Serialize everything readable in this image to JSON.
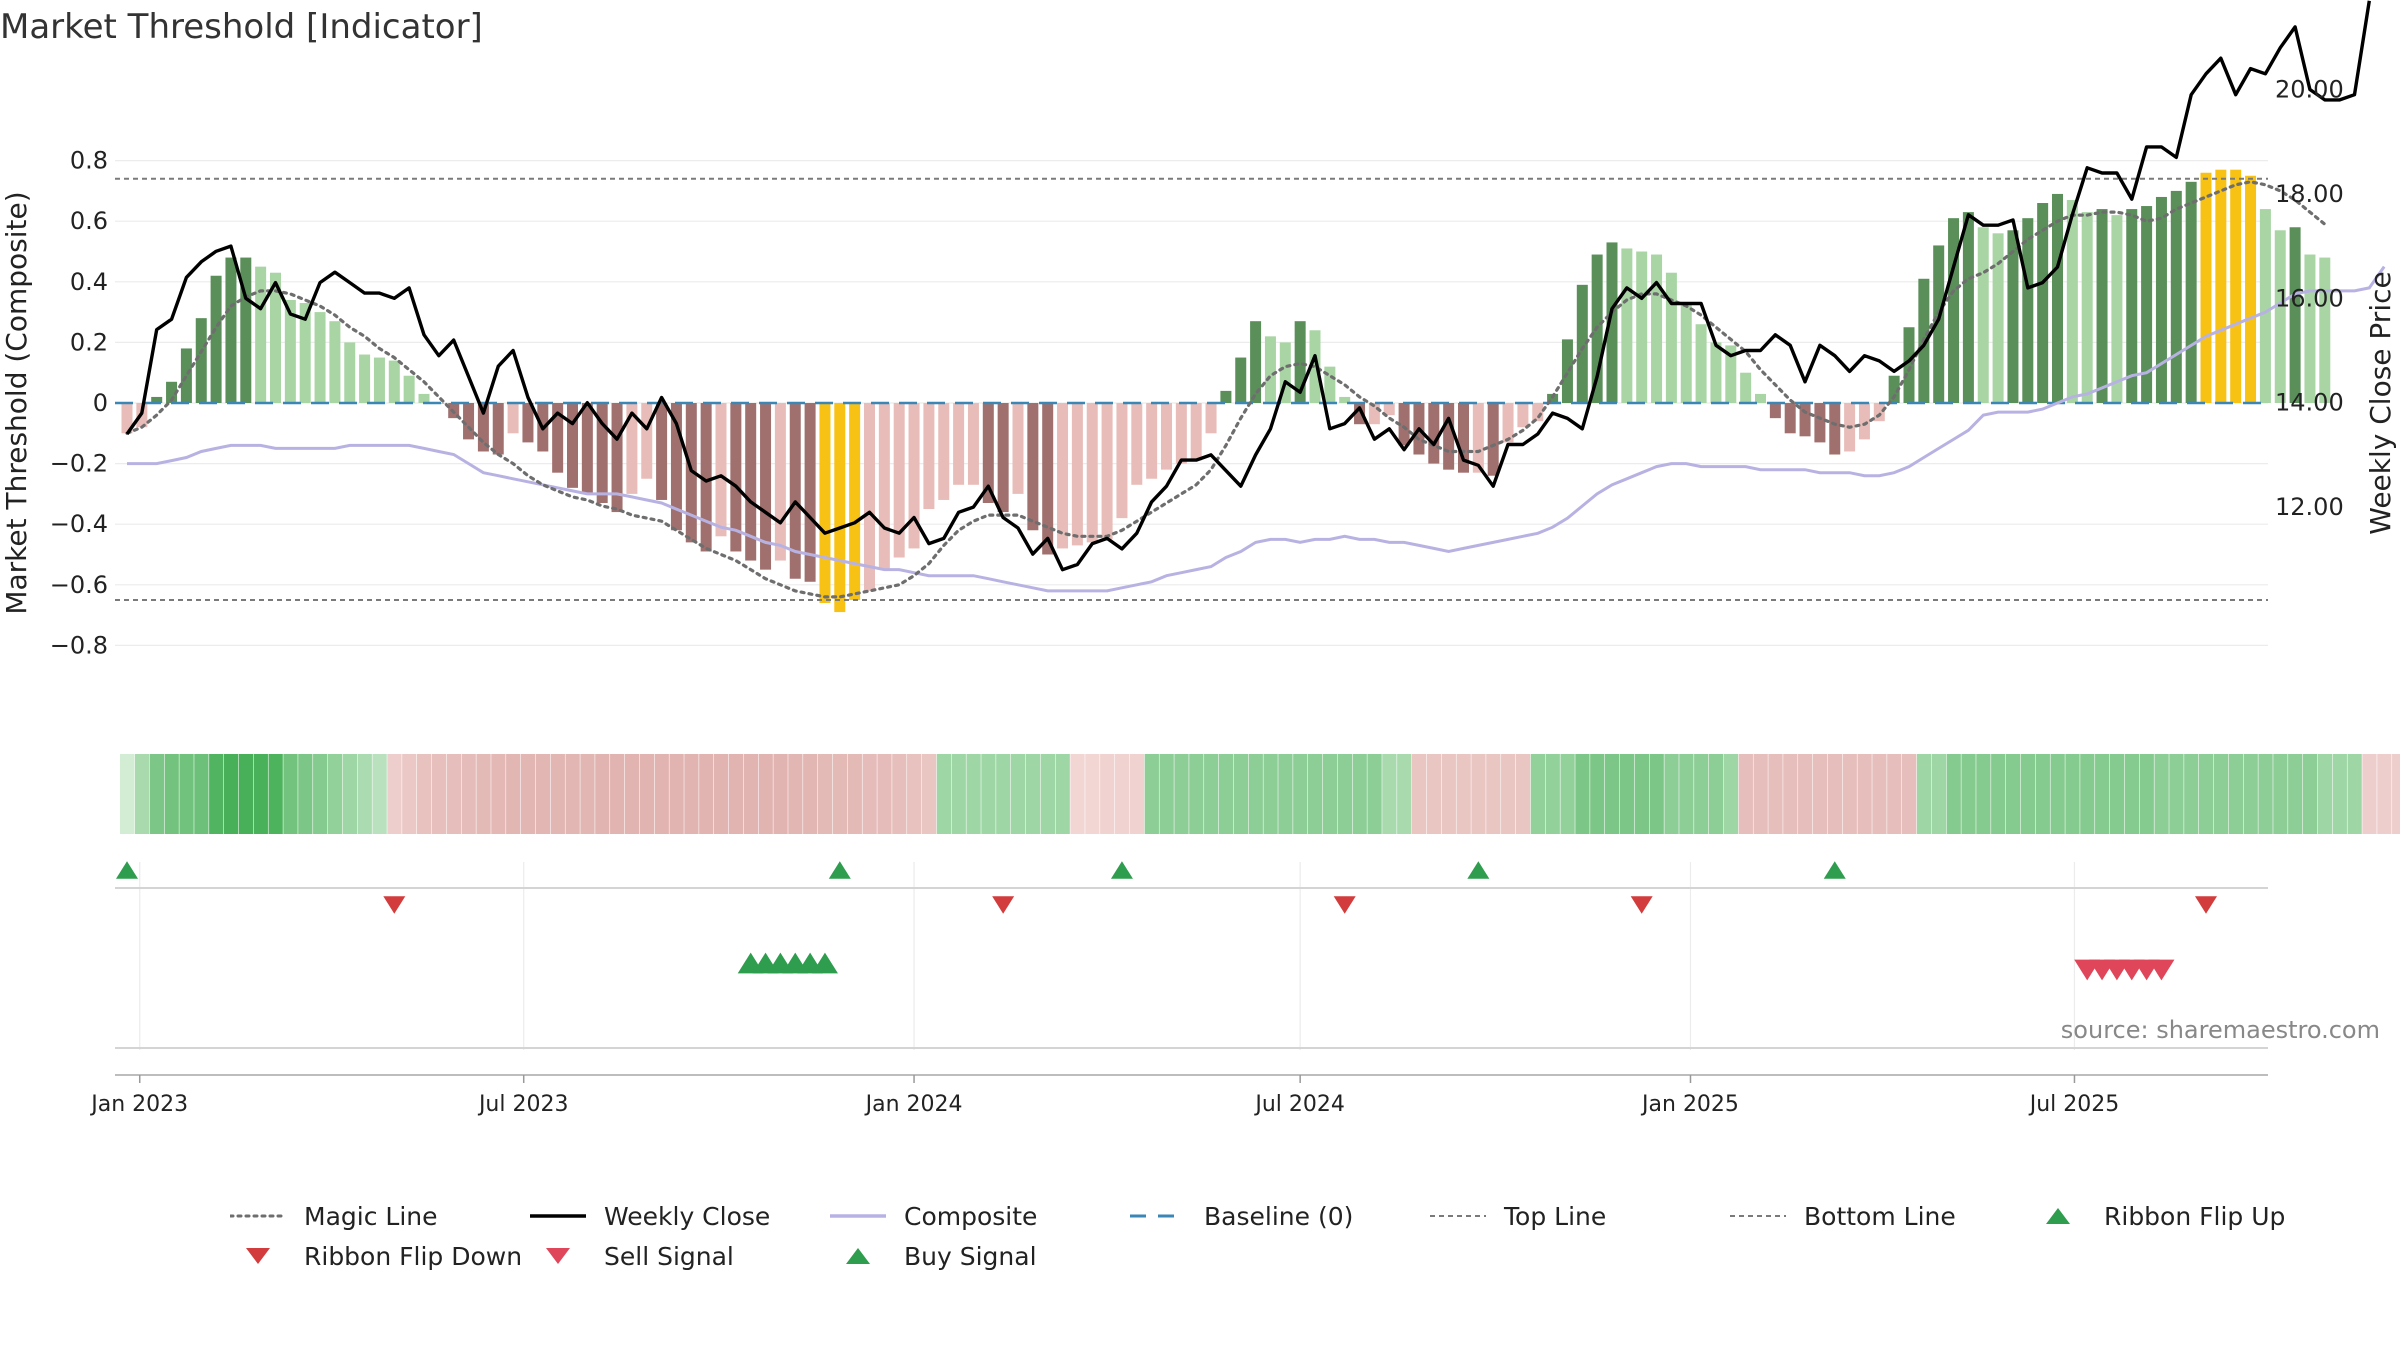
{
  "chart_data": {
    "type": "bar",
    "title": "Market Threshold [Indicator]",
    "ylabel": "Market Threshold (Composite)",
    "y2label": "Weekly Close Price",
    "source": "source: sharemaestro.com",
    "ylim": [
      -0.85,
      0.82
    ],
    "y2lim": [
      10.2,
      22.3
    ],
    "yticks": [
      "0.8",
      "0.6",
      "0.4",
      "0.2",
      "0",
      "−0.2",
      "−0.4",
      "−0.6",
      "−0.8"
    ],
    "y2ticks": [
      "22.00",
      "20.00",
      "18.00",
      "16.00",
      "14.00",
      "12.00"
    ],
    "xticks": [
      "Jan 2023",
      "Jul 2023",
      "Jan 2024",
      "Jul 2024",
      "Jan 2025",
      "Jul 2025"
    ],
    "top_line": 0.74,
    "bottom_line": -0.65,
    "weeks": [
      "2022-12-26",
      "2023-01-02",
      "2023-01-09",
      "2023-01-16",
      "2023-01-23",
      "2023-01-30",
      "2023-02-06",
      "2023-02-13",
      "2023-02-20",
      "2023-02-27",
      "2023-03-06",
      "2023-03-13",
      "2023-03-20",
      "2023-03-27",
      "2023-04-03",
      "2023-04-10",
      "2023-04-17",
      "2023-04-24",
      "2023-05-01",
      "2023-05-08",
      "2023-05-15",
      "2023-05-22",
      "2023-05-29",
      "2023-06-05",
      "2023-06-12",
      "2023-06-19",
      "2023-06-26",
      "2023-07-03",
      "2023-07-10",
      "2023-07-17",
      "2023-07-24",
      "2023-07-31",
      "2023-08-07",
      "2023-08-14",
      "2023-08-21",
      "2023-08-28",
      "2023-09-04",
      "2023-09-11",
      "2023-09-18",
      "2023-09-25",
      "2023-10-02",
      "2023-10-09",
      "2023-10-16",
      "2023-10-23",
      "2023-10-30",
      "2023-11-06",
      "2023-11-13",
      "2023-11-20",
      "2023-11-27",
      "2023-12-04",
      "2023-12-11",
      "2023-12-18",
      "2023-12-25",
      "2024-01-01",
      "2024-01-08",
      "2024-01-15",
      "2024-01-22",
      "2024-01-29",
      "2024-02-05",
      "2024-02-12",
      "2024-02-19",
      "2024-02-26",
      "2024-03-04",
      "2024-03-11",
      "2024-03-18",
      "2024-03-25",
      "2024-04-01",
      "2024-04-08",
      "2024-04-15",
      "2024-04-22",
      "2024-04-29",
      "2024-05-06",
      "2024-05-13",
      "2024-05-20",
      "2024-05-27",
      "2024-06-03",
      "2024-06-10",
      "2024-06-17",
      "2024-06-24",
      "2024-07-01",
      "2024-07-08",
      "2024-07-15",
      "2024-07-22",
      "2024-07-29",
      "2024-08-05",
      "2024-08-12",
      "2024-08-19",
      "2024-08-26",
      "2024-09-02",
      "2024-09-09",
      "2024-09-16",
      "2024-09-23",
      "2024-09-30",
      "2024-10-07",
      "2024-10-14",
      "2024-10-21",
      "2024-10-28",
      "2024-11-04",
      "2024-11-11",
      "2024-11-18",
      "2024-11-25",
      "2024-12-02",
      "2024-12-09",
      "2024-12-16",
      "2024-12-23",
      "2024-12-30",
      "2025-01-06",
      "2025-01-13",
      "2025-01-20",
      "2025-01-27",
      "2025-02-03",
      "2025-02-10",
      "2025-02-17",
      "2025-02-24",
      "2025-03-03",
      "2025-03-10",
      "2025-03-17",
      "2025-03-24",
      "2025-03-31",
      "2025-04-07",
      "2025-04-14",
      "2025-04-21",
      "2025-04-28",
      "2025-05-05",
      "2025-05-12",
      "2025-05-19",
      "2025-05-26",
      "2025-06-02",
      "2025-06-09",
      "2025-06-16",
      "2025-06-23",
      "2025-06-30",
      "2025-07-07",
      "2025-07-14",
      "2025-07-21",
      "2025-07-28",
      "2025-08-04",
      "2025-08-11",
      "2025-08-18",
      "2025-08-25",
      "2025-09-01",
      "2025-09-08",
      "2025-09-15"
    ],
    "composite_bars": [
      -0.1,
      -0.08,
      0.02,
      0.07,
      0.18,
      0.28,
      0.42,
      0.48,
      0.48,
      0.45,
      0.43,
      0.34,
      0.33,
      0.3,
      0.27,
      0.2,
      0.16,
      0.15,
      0.14,
      0.09,
      0.03,
      0,
      -0.05,
      -0.12,
      -0.16,
      -0.17,
      -0.1,
      -0.13,
      -0.16,
      -0.23,
      -0.28,
      -0.3,
      -0.33,
      -0.36,
      -0.3,
      -0.25,
      -0.32,
      -0.42,
      -0.46,
      -0.49,
      -0.44,
      -0.49,
      -0.52,
      -0.55,
      -0.52,
      -0.58,
      -0.59,
      -0.66,
      -0.69,
      -0.65,
      -0.62,
      -0.55,
      -0.51,
      -0.48,
      -0.35,
      -0.32,
      -0.27,
      -0.27,
      -0.33,
      -0.36,
      -0.3,
      -0.42,
      -0.5,
      -0.48,
      -0.47,
      -0.46,
      -0.45,
      -0.38,
      -0.27,
      -0.25,
      -0.22,
      -0.2,
      -0.19,
      -0.1,
      0.04,
      0.15,
      0.27,
      0.22,
      0.2,
      0.27,
      0.24,
      0.12,
      0.02,
      -0.07,
      -0.07,
      -0.04,
      -0.14,
      -0.17,
      -0.2,
      -0.22,
      -0.23,
      -0.23,
      -0.24,
      -0.13,
      -0.08,
      -0.06,
      0.03,
      0.21,
      0.39,
      0.49,
      0.53,
      0.51,
      0.5,
      0.49,
      0.43,
      0.33,
      0.26,
      0.2,
      0.19,
      0.1,
      0.03,
      -0.05,
      -0.1,
      -0.11,
      -0.13,
      -0.17,
      -0.16,
      -0.12,
      -0.06,
      0.09,
      0.25,
      0.41,
      0.52,
      0.61,
      0.63,
      0.58,
      0.56,
      0.57,
      0.61,
      0.66,
      0.69,
      0.67,
      0.63,
      0.64,
      0.62,
      0.64,
      0.65,
      0.68,
      0.7,
      0.73,
      0.76,
      0.77,
      0.77,
      0.75,
      0.64,
      0.57,
      0.58,
      0.49,
      0.48
    ],
    "bar_colors": {
      "dark_green": "#5a8f5a",
      "light_green": "#a9d5a5",
      "dark_red": "#a0706e",
      "light_red": "#e8bdb9",
      "threshold": "#f8c214"
    },
    "weekly_close": [
      13.4,
      13.8,
      15.4,
      15.6,
      16.4,
      16.7,
      16.9,
      17.0,
      16.0,
      15.8,
      16.3,
      15.7,
      15.6,
      16.3,
      16.5,
      16.3,
      16.1,
      16.1,
      16.0,
      16.2,
      15.3,
      14.9,
      15.2,
      14.5,
      13.8,
      14.7,
      15.0,
      14.1,
      13.5,
      13.8,
      13.6,
      14.0,
      13.6,
      13.3,
      13.8,
      13.5,
      14.1,
      13.6,
      12.7,
      12.5,
      12.6,
      12.4,
      12.1,
      11.9,
      11.7,
      12.1,
      11.8,
      11.5,
      11.6,
      11.7,
      11.9,
      11.6,
      11.5,
      11.8,
      11.3,
      11.4,
      11.9,
      12.0,
      12.4,
      11.8,
      11.6,
      11.1,
      11.4,
      10.8,
      10.9,
      11.3,
      11.4,
      11.2,
      11.5,
      12.1,
      12.4,
      12.9,
      12.9,
      13.0,
      12.7,
      12.4,
      13.0,
      13.5,
      14.4,
      14.2,
      14.9,
      13.5,
      13.6,
      13.9,
      13.3,
      13.5,
      13.1,
      13.5,
      13.2,
      13.7,
      12.9,
      12.8,
      12.4,
      13.2,
      13.2,
      13.4,
      13.8,
      13.7,
      13.5,
      14.5,
      15.8,
      16.2,
      16.0,
      16.3,
      15.9,
      15.9,
      15.9,
      15.1,
      14.9,
      15.0,
      15.0,
      15.3,
      15.1,
      14.4,
      15.1,
      14.9,
      14.6,
      14.9,
      14.8,
      14.6,
      14.8,
      15.1,
      15.6,
      16.6,
      17.6,
      17.4,
      17.4,
      17.5,
      16.2,
      16.3,
      16.6,
      17.6,
      18.5,
      18.4,
      18.4,
      17.9,
      18.9,
      18.9,
      18.7,
      19.9,
      20.3,
      20.6,
      19.9,
      20.4,
      20.3,
      20.8,
      21.2,
      20.0,
      19.8,
      19.8,
      19.9,
      21.7
    ],
    "composite_line": [
      -0.2,
      -0.2,
      -0.2,
      -0.19,
      -0.18,
      -0.16,
      -0.15,
      -0.14,
      -0.14,
      -0.14,
      -0.15,
      -0.15,
      -0.15,
      -0.15,
      -0.15,
      -0.14,
      -0.14,
      -0.14,
      -0.14,
      -0.14,
      -0.15,
      -0.16,
      -0.17,
      -0.2,
      -0.23,
      -0.24,
      -0.25,
      -0.26,
      -0.27,
      -0.28,
      -0.29,
      -0.3,
      -0.3,
      -0.3,
      -0.31,
      -0.32,
      -0.33,
      -0.35,
      -0.37,
      -0.39,
      -0.41,
      -0.42,
      -0.44,
      -0.46,
      -0.47,
      -0.49,
      -0.5,
      -0.51,
      -0.52,
      -0.53,
      -0.54,
      -0.55,
      -0.55,
      -0.56,
      -0.57,
      -0.57,
      -0.57,
      -0.57,
      -0.58,
      -0.59,
      -0.6,
      -0.61,
      -0.62,
      -0.62,
      -0.62,
      -0.62,
      -0.62,
      -0.61,
      -0.6,
      -0.59,
      -0.57,
      -0.56,
      -0.55,
      -0.54,
      -0.51,
      -0.49,
      -0.46,
      -0.45,
      -0.45,
      -0.46,
      -0.45,
      -0.45,
      -0.44,
      -0.45,
      -0.45,
      -0.46,
      -0.46,
      -0.47,
      -0.48,
      -0.49,
      -0.48,
      -0.47,
      -0.46,
      -0.45,
      -0.44,
      -0.43,
      -0.41,
      -0.38,
      -0.34,
      -0.3,
      -0.27,
      -0.25,
      -0.23,
      -0.21,
      -0.2,
      -0.2,
      -0.21,
      -0.21,
      -0.21,
      -0.21,
      -0.22,
      -0.22,
      -0.22,
      -0.22,
      -0.23,
      -0.23,
      -0.23,
      -0.24,
      -0.24,
      -0.23,
      -0.21,
      -0.18,
      -0.15,
      -0.12,
      -0.09,
      -0.04,
      -0.03,
      -0.03,
      -0.03,
      -0.02,
      0.0,
      0.02,
      0.03,
      0.05,
      0.07,
      0.09,
      0.1,
      0.13,
      0.16,
      0.19,
      0.22,
      0.24,
      0.26,
      0.28,
      0.3,
      0.33,
      0.36,
      0.37,
      0.37,
      0.37,
      0.37,
      0.38,
      0.45
    ],
    "magic_line": [
      -0.1,
      -0.08,
      -0.04,
      0.01,
      0.09,
      0.17,
      0.25,
      0.32,
      0.35,
      0.37,
      0.37,
      0.36,
      0.34,
      0.32,
      0.29,
      0.25,
      0.22,
      0.18,
      0.15,
      0.11,
      0.07,
      0.02,
      -0.03,
      -0.08,
      -0.13,
      -0.17,
      -0.2,
      -0.24,
      -0.27,
      -0.29,
      -0.31,
      -0.32,
      -0.34,
      -0.35,
      -0.37,
      -0.38,
      -0.39,
      -0.42,
      -0.45,
      -0.48,
      -0.5,
      -0.52,
      -0.55,
      -0.58,
      -0.6,
      -0.62,
      -0.63,
      -0.64,
      -0.64,
      -0.63,
      -0.62,
      -0.61,
      -0.6,
      -0.57,
      -0.53,
      -0.47,
      -0.42,
      -0.39,
      -0.37,
      -0.37,
      -0.37,
      -0.39,
      -0.41,
      -0.43,
      -0.44,
      -0.44,
      -0.44,
      -0.42,
      -0.39,
      -0.36,
      -0.33,
      -0.3,
      -0.27,
      -0.22,
      -0.14,
      -0.05,
      0.03,
      0.09,
      0.12,
      0.13,
      0.12,
      0.09,
      0.06,
      0.02,
      -0.01,
      -0.05,
      -0.08,
      -0.12,
      -0.14,
      -0.16,
      -0.16,
      -0.16,
      -0.14,
      -0.12,
      -0.09,
      -0.05,
      0.02,
      0.1,
      0.18,
      0.25,
      0.3,
      0.34,
      0.36,
      0.36,
      0.34,
      0.32,
      0.29,
      0.25,
      0.21,
      0.17,
      0.11,
      0.06,
      0.01,
      -0.03,
      -0.05,
      -0.07,
      -0.08,
      -0.07,
      -0.04,
      0.02,
      0.11,
      0.21,
      0.3,
      0.37,
      0.41,
      0.43,
      0.46,
      0.5,
      0.54,
      0.57,
      0.6,
      0.62,
      0.62,
      0.63,
      0.63,
      0.62,
      0.6,
      0.61,
      0.64,
      0.66,
      0.68,
      0.7,
      0.72,
      0.73,
      0.72,
      0.7,
      0.67,
      0.63,
      0.59
    ],
    "baseline": 0,
    "ribbon": [
      0.05,
      0.3,
      0.55,
      0.6,
      0.62,
      0.64,
      0.8,
      0.85,
      0.85,
      0.84,
      0.82,
      0.6,
      0.55,
      0.5,
      0.42,
      0.35,
      0.28,
      0.2,
      -0.2,
      -0.28,
      -0.35,
      -0.38,
      -0.4,
      -0.42,
      -0.45,
      -0.48,
      -0.5,
      -0.5,
      -0.5,
      -0.5,
      -0.5,
      -0.5,
      -0.52,
      -0.52,
      -0.52,
      -0.52,
      -0.52,
      -0.52,
      -0.52,
      -0.52,
      -0.52,
      -0.52,
      -0.52,
      -0.52,
      -0.52,
      -0.5,
      -0.5,
      -0.45,
      -0.45,
      -0.45,
      -0.42,
      -0.42,
      -0.4,
      -0.35,
      -0.3,
      0.35,
      0.35,
      0.35,
      0.35,
      0.35,
      0.35,
      0.35,
      0.35,
      0.35,
      -0.1,
      -0.1,
      -0.15,
      -0.15,
      -0.15,
      0.45,
      0.45,
      0.45,
      0.45,
      0.45,
      0.45,
      0.45,
      0.45,
      0.45,
      0.45,
      0.45,
      0.45,
      0.45,
      0.45,
      0.45,
      0.45,
      0.3,
      0.3,
      -0.3,
      -0.3,
      -0.3,
      -0.3,
      -0.3,
      -0.3,
      -0.3,
      -0.3,
      0.42,
      0.42,
      0.42,
      0.55,
      0.55,
      0.55,
      0.55,
      0.55,
      0.55,
      0.45,
      0.45,
      0.45,
      0.45,
      0.35,
      -0.4,
      -0.4,
      -0.4,
      -0.4,
      -0.4,
      -0.4,
      -0.4,
      -0.4,
      -0.4,
      -0.4,
      -0.4,
      -0.4,
      0.35,
      0.35,
      0.5,
      0.5,
      0.5,
      0.5,
      0.5,
      0.5,
      0.5,
      0.5,
      0.5,
      0.5,
      0.5,
      0.5,
      0.5,
      0.5,
      0.45,
      0.45,
      0.45,
      0.45,
      0.45,
      0.45,
      0.45,
      0.45,
      0.45,
      0.45,
      0.45,
      0.35,
      0.35,
      0.35,
      -0.2,
      -0.2,
      -0.2
    ],
    "ribbon_flip_up": [
      "2022-12-26",
      "2023-11-27",
      "2024-04-08",
      "2024-09-23",
      "2025-03-10"
    ],
    "ribbon_flip_down": [
      "2023-05-01",
      "2024-02-12",
      "2024-07-22",
      "2024-12-09",
      "2025-09-01"
    ],
    "buy_signal": [
      "2023-10-16",
      "2023-10-23",
      "2023-10-30",
      "2023-11-06",
      "2023-11-13",
      "2023-11-20"
    ],
    "sell_signal": [
      "2025-07-07",
      "2025-07-14",
      "2025-07-21",
      "2025-07-28",
      "2025-08-04",
      "2025-08-11"
    ],
    "colors": {
      "weekly_close": "#000000",
      "composite": "#b8b2e3",
      "magic_line": "#6e6e6e",
      "baseline": "#3a86b4",
      "top_bottom": "#7a7a7a",
      "up": "#2e9d4e",
      "down": "#d33c3c"
    },
    "legend": [
      {
        "label": "Magic Line",
        "kind": "dotted",
        "color": "#6e6e6e"
      },
      {
        "label": "Weekly Close",
        "kind": "solid",
        "color": "#000000"
      },
      {
        "label": "Composite",
        "kind": "solid",
        "color": "#b8b2e3"
      },
      {
        "label": "Baseline (0)",
        "kind": "dashed",
        "color": "#3a86b4"
      },
      {
        "label": "Top Line",
        "kind": "fine-dash",
        "color": "#7a7a7a"
      },
      {
        "label": "Bottom Line",
        "kind": "fine-dash",
        "color": "#7a7a7a"
      },
      {
        "label": "Ribbon Flip Up",
        "kind": "triangle-up",
        "color": "#2e9d4e"
      },
      {
        "label": "Ribbon Flip Down",
        "kind": "triangle-down",
        "color": "#d33c3c"
      },
      {
        "label": "Sell Signal",
        "kind": "triangle-down",
        "color": "#e0465a"
      },
      {
        "label": "Buy Signal",
        "kind": "triangle-up",
        "color": "#2e9d4e"
      }
    ]
  }
}
